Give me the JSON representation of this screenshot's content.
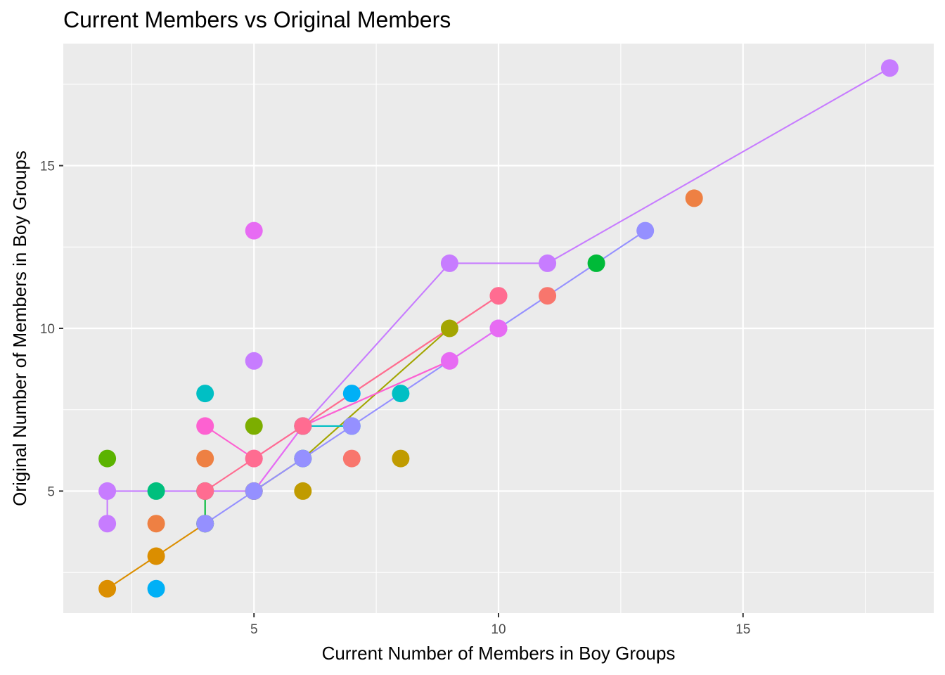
{
  "chart_data": {
    "type": "scatter",
    "title": "Current Members vs Original Members",
    "xlabel": "Current Number of Members in Boy Groups",
    "ylabel": "Original Number of Members in Boy Groups",
    "xlim": [
      1.1,
      18.9
    ],
    "ylim": [
      1.25,
      18.75
    ],
    "x_ticks": [
      5,
      10,
      15
    ],
    "y_ticks": [
      5,
      10,
      15
    ],
    "grid": true,
    "legend": "none",
    "series": [
      {
        "color": "#F8766D",
        "points": [
          [
            7,
            6
          ],
          [
            11,
            11
          ],
          [
            6,
            7
          ],
          [
            10,
            11
          ]
        ],
        "line": [
          [
            6,
            7
          ],
          [
            10,
            11
          ]
        ]
      },
      {
        "color": "#EE8043",
        "points": [
          [
            3,
            4
          ],
          [
            4,
            6
          ],
          [
            14,
            14
          ]
        ],
        "line": []
      },
      {
        "color": "#DB8E00",
        "points": [
          [
            2,
            2
          ],
          [
            3,
            3
          ],
          [
            4,
            4
          ]
        ],
        "line": [
          [
            2,
            2
          ],
          [
            3,
            3
          ],
          [
            4,
            4
          ]
        ]
      },
      {
        "color": "#C09B00",
        "points": [
          [
            5,
            5
          ],
          [
            6,
            5
          ],
          [
            8,
            6
          ]
        ],
        "line": []
      },
      {
        "color": "#A3A500",
        "points": [
          [
            5,
            5
          ],
          [
            6,
            6
          ],
          [
            9,
            10
          ]
        ],
        "line": [
          [
            5,
            5
          ],
          [
            6,
            6
          ],
          [
            9,
            10
          ]
        ]
      },
      {
        "color": "#7CAE00",
        "points": [
          [
            5,
            7
          ]
        ],
        "line": []
      },
      {
        "color": "#5BB300",
        "points": [
          [
            2,
            6
          ]
        ],
        "line": []
      },
      {
        "color": "#00BA38",
        "points": [
          [
            12,
            12
          ],
          [
            4,
            5
          ],
          [
            4,
            4
          ]
        ],
        "line": [
          [
            4,
            5
          ],
          [
            4,
            4
          ]
        ]
      },
      {
        "color": "#00BF7D",
        "points": [
          [
            3,
            5
          ]
        ],
        "line": []
      },
      {
        "color": "#00BFC4",
        "points": [
          [
            4,
            8
          ],
          [
            6,
            6
          ],
          [
            6,
            7
          ],
          [
            7,
            7
          ],
          [
            8,
            8
          ]
        ],
        "line": [
          [
            6,
            7
          ],
          [
            7,
            7
          ]
        ]
      },
      {
        "color": "#00B0F6",
        "points": [
          [
            3,
            2
          ],
          [
            7,
            8
          ]
        ],
        "line": []
      },
      {
        "color": "#9590FF",
        "points": [
          [
            4,
            4
          ],
          [
            5,
            5
          ],
          [
            6,
            6
          ],
          [
            7,
            7
          ],
          [
            10,
            10
          ],
          [
            13,
            13
          ]
        ],
        "line": [
          [
            4,
            4
          ],
          [
            5,
            5
          ],
          [
            6,
            6
          ],
          [
            7,
            7
          ],
          [
            10,
            10
          ],
          [
            13,
            13
          ]
        ]
      },
      {
        "color": "#C77CFF",
        "points": [
          [
            2,
            4
          ],
          [
            2,
            5
          ],
          [
            5,
            9
          ],
          [
            9,
            12
          ],
          [
            11,
            12
          ],
          [
            18,
            18
          ]
        ],
        "line": [
          [
            2,
            4
          ],
          [
            2,
            5
          ],
          [
            4,
            5
          ],
          [
            5,
            5
          ],
          [
            6,
            7
          ],
          [
            9,
            12
          ],
          [
            11,
            12
          ],
          [
            18,
            18
          ]
        ]
      },
      {
        "color": "#E76BF3",
        "points": [
          [
            5,
            13
          ],
          [
            9,
            9
          ],
          [
            10,
            10
          ]
        ],
        "line": [
          [
            5,
            5
          ],
          [
            6,
            7
          ],
          [
            9,
            9
          ],
          [
            10,
            10
          ]
        ]
      },
      {
        "color": "#FD61D1",
        "points": [
          [
            4,
            7
          ],
          [
            5,
            6
          ]
        ],
        "line": [
          [
            4,
            7
          ],
          [
            5,
            6
          ],
          [
            6,
            7
          ],
          [
            9,
            9
          ]
        ]
      },
      {
        "color": "#FF6C91",
        "points": [
          [
            4,
            5
          ],
          [
            5,
            6
          ],
          [
            6,
            7
          ],
          [
            10,
            11
          ]
        ],
        "line": [
          [
            4,
            5
          ],
          [
            5,
            6
          ],
          [
            6,
            7
          ],
          [
            10,
            11
          ]
        ]
      }
    ]
  }
}
